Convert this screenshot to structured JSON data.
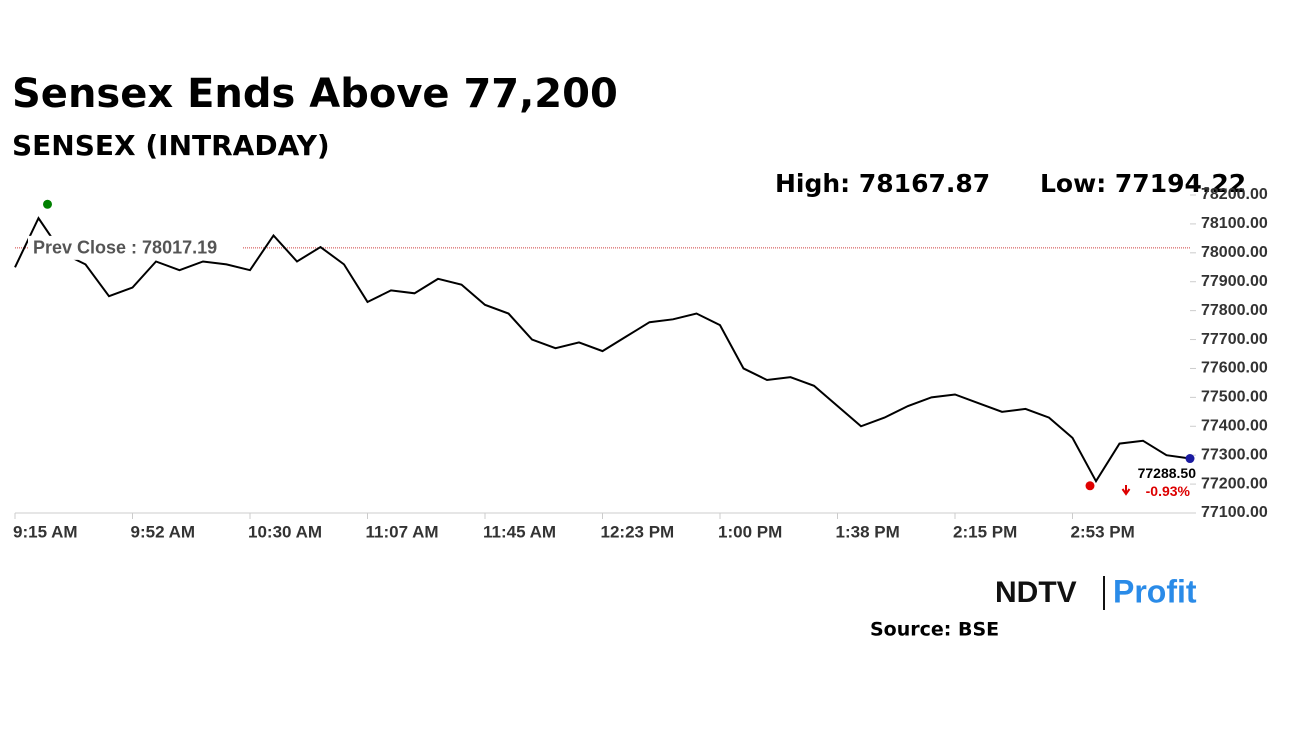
{
  "chart_data": {
    "type": "line",
    "title": "Sensex Ends Above 77,200",
    "subtitle": "SENSEX (INTRADAY)",
    "high": {
      "value": 78167.87,
      "label": "High: 78167.87"
    },
    "low": {
      "value": 77194.22,
      "label": "Low: 77194.22"
    },
    "prev_close": {
      "value": 78017.19,
      "label": "Prev Close : 78017.19"
    },
    "last": {
      "value": 77288.5,
      "label": "77288.50"
    },
    "change_label": "-0.93%",
    "source": "Source: BSE",
    "logo": [
      "NDTV",
      "Profit"
    ],
    "x": [
      "9:15 AM",
      "9:22 AM",
      "9:30 AM",
      "9:37 AM",
      "9:45 AM",
      "9:52 AM",
      "10:00 AM",
      "10:07 AM",
      "10:15 AM",
      "10:22 AM",
      "10:30 AM",
      "10:37 AM",
      "10:45 AM",
      "10:52 AM",
      "11:00 AM",
      "11:07 AM",
      "11:15 AM",
      "11:22 AM",
      "11:30 AM",
      "11:37 AM",
      "11:45 AM",
      "11:52 AM",
      "12:00 PM",
      "12:07 PM",
      "12:15 PM",
      "12:23 PM",
      "12:30 PM",
      "12:37 PM",
      "12:45 PM",
      "12:52 PM",
      "1:00 PM",
      "1:07 PM",
      "1:15 PM",
      "1:22 PM",
      "1:30 PM",
      "1:38 PM",
      "1:45 PM",
      "1:52 PM",
      "2:00 PM",
      "2:07 PM",
      "2:15 PM",
      "2:22 PM",
      "2:30 PM",
      "2:37 PM",
      "2:45 PM",
      "2:53 PM",
      "3:00 PM",
      "3:07 PM",
      "3:15 PM",
      "3:22 PM",
      "3:30 PM"
    ],
    "xticks": [
      "9:15 AM",
      "9:52 AM",
      "10:30 AM",
      "11:07 AM",
      "11:45 AM",
      "12:23 PM",
      "1:00 PM",
      "1:38 PM",
      "2:15 PM",
      "2:53 PM"
    ],
    "series": [
      {
        "name": "SENSEX",
        "color": "#000000",
        "values": [
          77950,
          78120,
          78000,
          77960,
          77850,
          77880,
          77970,
          77940,
          77970,
          77960,
          77940,
          78060,
          77970,
          78020,
          77960,
          77830,
          77870,
          77860,
          77910,
          77890,
          77820,
          77790,
          77700,
          77670,
          77690,
          77660,
          77710,
          77760,
          77770,
          77790,
          77750,
          77600,
          77560,
          77570,
          77540,
          77470,
          77400,
          77430,
          77470,
          77500,
          77510,
          77480,
          77450,
          77460,
          77430,
          77360,
          77210,
          77340,
          77350,
          77300,
          77288.5
        ]
      }
    ],
    "ylim": [
      77100,
      78200
    ],
    "yticks": [
      {
        "value": 77100,
        "label": "77100.00"
      },
      {
        "value": 77200,
        "label": "77200.00"
      },
      {
        "value": 77300,
        "label": "77300.00"
      },
      {
        "value": 77400,
        "label": "77400.00"
      },
      {
        "value": 77500,
        "label": "77500.00"
      },
      {
        "value": 77600,
        "label": "77600.00"
      },
      {
        "value": 77700,
        "label": "77700.00"
      },
      {
        "value": 77800,
        "label": "77800.00"
      },
      {
        "value": 77900,
        "label": "77900.00"
      },
      {
        "value": 78000,
        "label": "78000.00"
      },
      {
        "value": 78100,
        "label": "78100.00"
      },
      {
        "value": 78200,
        "label": "78200.00"
      }
    ],
    "marker_colors": {
      "high": "#008000",
      "low": "#e00000",
      "last": "#1a1aa0"
    }
  }
}
